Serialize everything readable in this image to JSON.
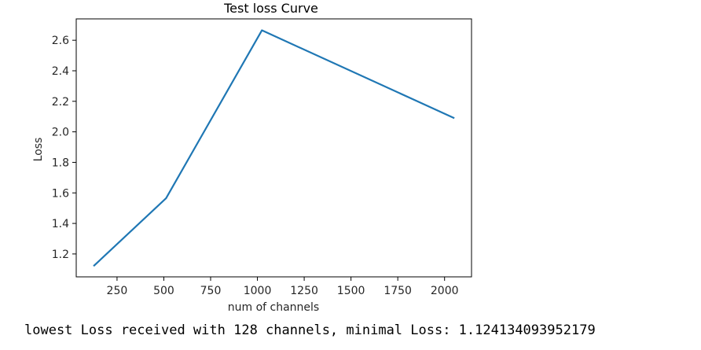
{
  "chart_data": {
    "type": "line",
    "title": "Test loss Curve",
    "xlabel": "num of channels",
    "ylabel": "Loss",
    "x": [
      128,
      512,
      1024,
      2048
    ],
    "series": [
      {
        "values": [
          1.124134093952179,
          1.565,
          2.665,
          2.092
        ],
        "color": "#1f77b4"
      }
    ],
    "xlim": [
      32,
      2144
    ],
    "ylim": [
      1.05,
      2.74
    ],
    "xticks": [
      250,
      500,
      750,
      1000,
      1250,
      1500,
      1750,
      2000
    ],
    "yticks": [
      1.2,
      1.4,
      1.6,
      1.8,
      2.0,
      2.2,
      2.4,
      2.6
    ],
    "xtick_labels": [
      "250",
      "500",
      "750",
      "1000",
      "1250",
      "1500",
      "1750",
      "2000"
    ],
    "ytick_labels": [
      "1.2",
      "1.4",
      "1.6",
      "1.8",
      "2.0",
      "2.2",
      "2.4",
      "2.6"
    ],
    "grid": false,
    "legend": "none"
  },
  "output": {
    "text": "lowest Loss received with 128 channels, minimal Loss: 1.124134093952179"
  }
}
